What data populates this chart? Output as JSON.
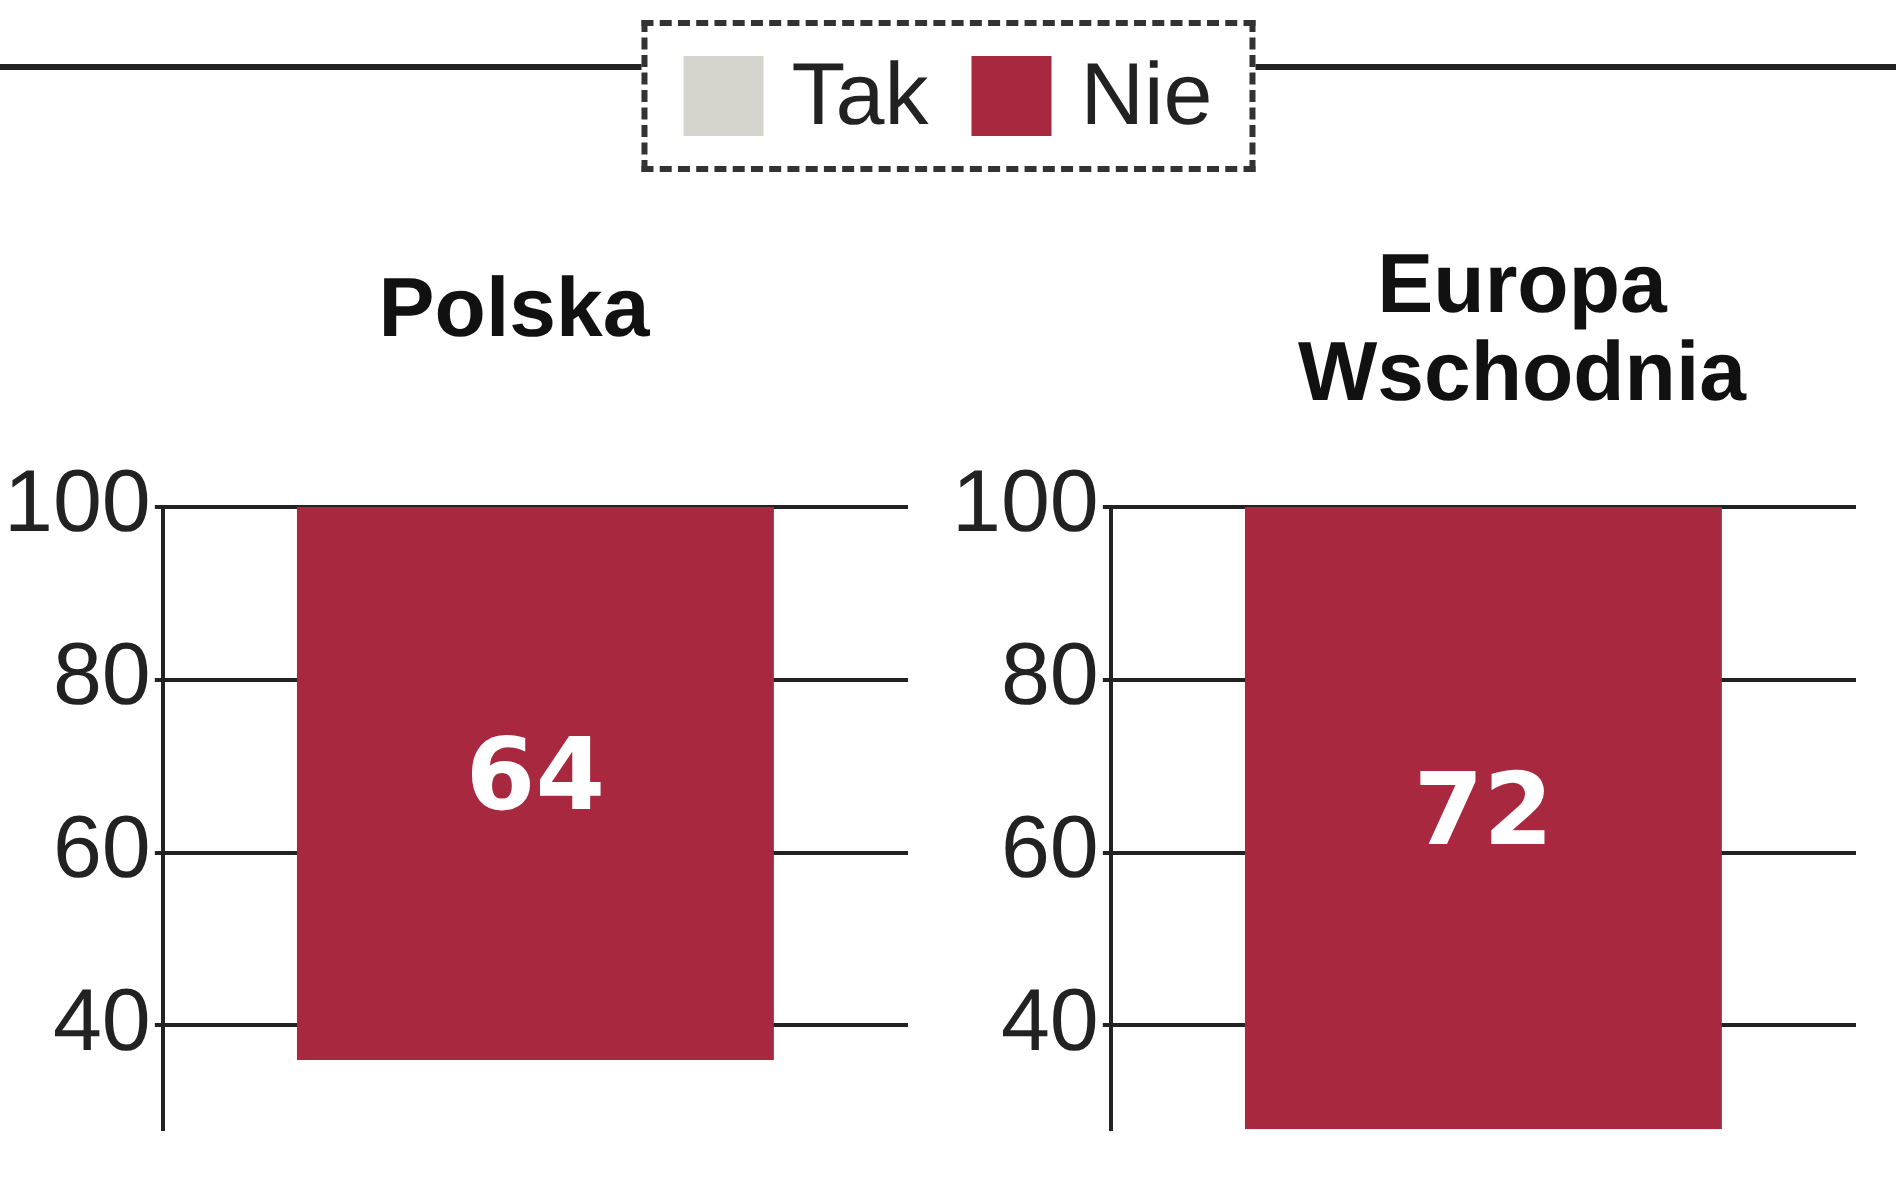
{
  "chart_data": [
    {
      "type": "bar",
      "title": "Polska",
      "categories": [
        null
      ],
      "series": [
        {
          "name": "Tak",
          "color": "#d6d5cd",
          "values": [
            null
          ]
        },
        {
          "name": "Nie",
          "color": "#a8283f",
          "values": [
            64
          ],
          "base": [
            36
          ]
        }
      ],
      "ylim": [
        28,
        100
      ],
      "yticks": [
        40,
        60,
        80,
        100
      ],
      "grid": "y",
      "legend": "top",
      "data_labels": true,
      "tick_labels": "y"
    },
    {
      "type": "bar",
      "title": "Europa\nWschodnia",
      "categories": [
        null
      ],
      "series": [
        {
          "color": "#a8283f",
          "values": [
            72
          ],
          "base": [
            28
          ]
        }
      ],
      "ylim": [
        28,
        100
      ],
      "yticks": [
        40,
        60,
        80,
        100
      ],
      "grid": "y",
      "data_labels": true,
      "tick_labels": "y"
    }
  ]
}
